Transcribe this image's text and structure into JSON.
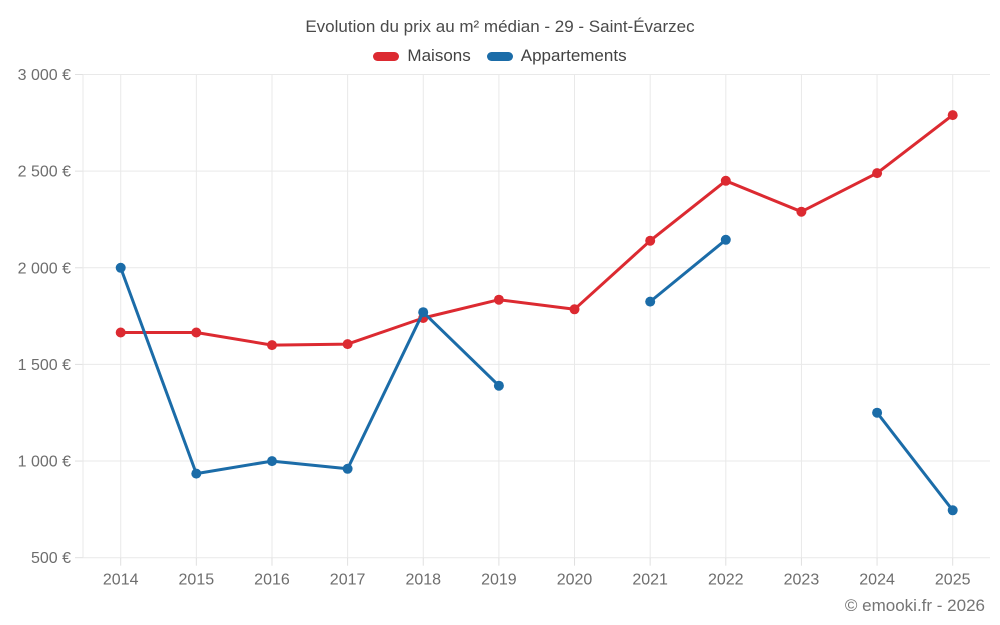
{
  "title": "Evolution du prix au m² médian - 29 - Saint-Évarzec",
  "footer": "© emooki.fr - 2026",
  "colors": {
    "maisons": "#dc2a31",
    "appartements": "#1b6ca8",
    "grid": "#e9e9e9",
    "tick": "#e0e0e0",
    "axis_text": "#6e6e6e",
    "title_text": "#4a4a4a",
    "background": "#ffffff"
  },
  "chart_data": {
    "type": "line",
    "title": "Evolution du prix au m² médian - 29 - Saint-Évarzec",
    "xlabel": "",
    "ylabel": "",
    "categories": [
      "2014",
      "2015",
      "2016",
      "2017",
      "2018",
      "2019",
      "2020",
      "2021",
      "2022",
      "2023",
      "2024",
      "2025"
    ],
    "series": [
      {
        "name": "Maisons",
        "color": "#dc2a31",
        "values": [
          1665,
          1665,
          1600,
          1605,
          1740,
          1835,
          1785,
          2140,
          2450,
          2290,
          2490,
          2790
        ]
      },
      {
        "name": "Appartements",
        "color": "#1b6ca8",
        "values": [
          2000,
          935,
          1000,
          960,
          1770,
          1390,
          null,
          1825,
          2145,
          null,
          1250,
          745
        ]
      }
    ],
    "ylim": [
      500,
      3000
    ],
    "y_ticks": [
      {
        "value": 500,
        "label": "500 €"
      },
      {
        "value": 1000,
        "label": "1 000 €"
      },
      {
        "value": 1500,
        "label": "1 500 €"
      },
      {
        "value": 2000,
        "label": "2 000 €"
      },
      {
        "value": 2500,
        "label": "2 500 €"
      },
      {
        "value": 3000,
        "label": "3 000 €"
      }
    ],
    "grid": true,
    "legend_position": "top",
    "currency_suffix": "€"
  }
}
